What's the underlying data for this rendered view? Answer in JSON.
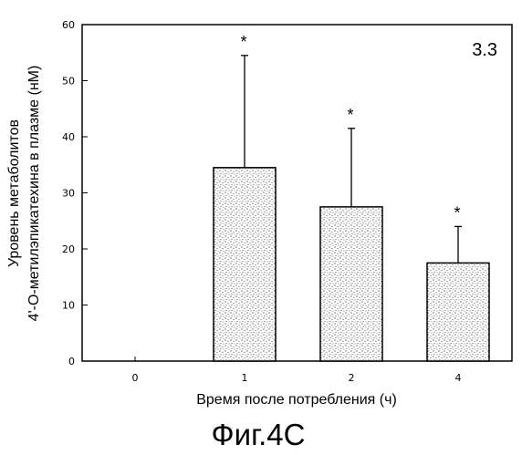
{
  "chart_data": {
    "type": "bar",
    "categories": [
      "0",
      "1",
      "2",
      "4"
    ],
    "values": [
      0,
      34.5,
      27.5,
      17.5
    ],
    "error_upper": [
      null,
      54.5,
      41.5,
      24.0
    ],
    "significance": [
      "",
      "*",
      "*",
      "*"
    ],
    "ylim": [
      0,
      60
    ],
    "yticks": [
      "0",
      "10",
      "20",
      "30",
      "40",
      "50",
      "60"
    ],
    "xlabel": "Время после потребления (ч)",
    "ylabel_line1": "Уровень метаболитов",
    "ylabel_line2": "4'-О-метилэпикатехина в плазме (нМ)",
    "panel_label": "3.3",
    "grid": false,
    "legend": "none"
  },
  "caption": "Фиг.4С"
}
